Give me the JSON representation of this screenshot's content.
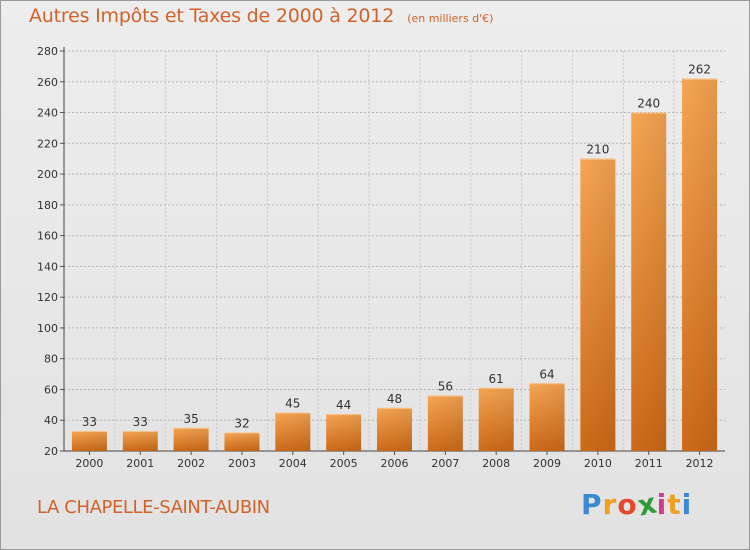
{
  "chart_data": {
    "type": "bar",
    "title": "Autres Impôts et Taxes de 2000 à 2012",
    "subtitle": "(en milliers d'€)",
    "categories": [
      "2000",
      "2001",
      "2002",
      "2003",
      "2004",
      "2005",
      "2006",
      "2007",
      "2008",
      "2009",
      "2010",
      "2011",
      "2012"
    ],
    "values": [
      33,
      33,
      35,
      32,
      45,
      44,
      48,
      56,
      61,
      64,
      210,
      240,
      262
    ],
    "ylim": [
      20,
      280
    ],
    "yticks": [
      20,
      40,
      60,
      80,
      100,
      120,
      140,
      160,
      180,
      200,
      220,
      240,
      260,
      280
    ],
    "grid": true,
    "bar_color": "#f09a43",
    "bar_color_dark": "#d06e1e"
  },
  "footer": {
    "commune": "LA CHAPELLE-SAINT-AUBIN"
  },
  "logo": {
    "text": "Proxiti",
    "letter_colors": [
      "#3a8ad2",
      "#f0a020",
      "#e24a2a",
      "#2e9a3a",
      "#d23a8a",
      "#f0a020",
      "#3a8ad2"
    ]
  }
}
